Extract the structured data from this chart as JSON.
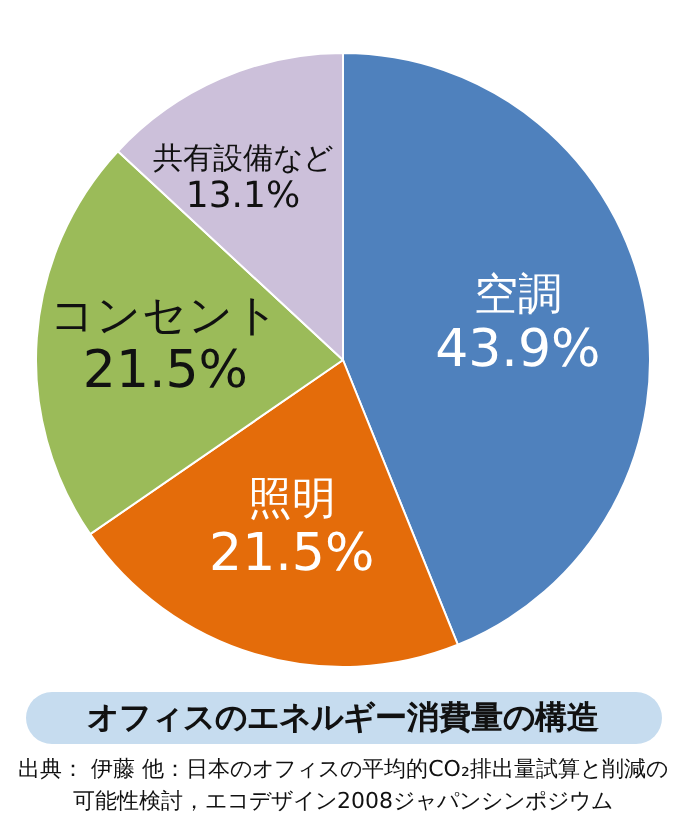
{
  "chart_data": {
    "type": "pie",
    "title": "オフィスのエネルギー消費量の構造",
    "categories": [
      "空調",
      "照明",
      "コンセント",
      "共有設備など"
    ],
    "values": [
      43.9,
      21.5,
      21.5,
      13.1
    ],
    "colors": [
      "#4f81bd",
      "#e46c0a",
      "#9bbb59",
      "#ccc0da"
    ],
    "value_labels": [
      "43.9%",
      "21.5%",
      "21.5%",
      "13.1%"
    ],
    "legend": false,
    "annotations": [
      "出典： 伊藤 他：日本のオフィスの平均的CO₂排出量試算と削減の可能性検討，エコデザイン2008ジャパンシンポジウム"
    ]
  }
}
